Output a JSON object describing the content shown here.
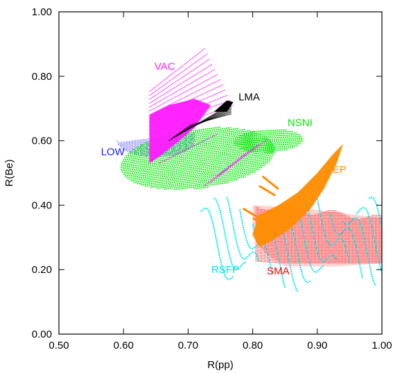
{
  "chart_data": {
    "type": "scatter",
    "xlabel": "R(pp)",
    "ylabel": "R(Be)",
    "xlim": [
      0.5,
      1.0
    ],
    "ylim": [
      0.0,
      1.0
    ],
    "x_ticks": [
      "0.50",
      "0.60",
      "0.70",
      "0.80",
      "0.90",
      "1.00"
    ],
    "y_ticks": [
      "0.00",
      "0.20",
      "0.40",
      "0.60",
      "0.80",
      "1.00"
    ],
    "grid": false,
    "legend": "none",
    "regions": [
      {
        "label": "LOW",
        "color": "#1a1aff"
      },
      {
        "label": "VAC",
        "color": "#ff1aff"
      },
      {
        "label": "LMA",
        "color": "#000000"
      },
      {
        "label": "NSNI",
        "color": "#00e600"
      },
      {
        "label": "VEP",
        "color": "#ff8c00"
      },
      {
        "label": "RSFP",
        "color": "#00e5ee"
      },
      {
        "label": "SMA",
        "color": "#ff0000"
      }
    ]
  }
}
